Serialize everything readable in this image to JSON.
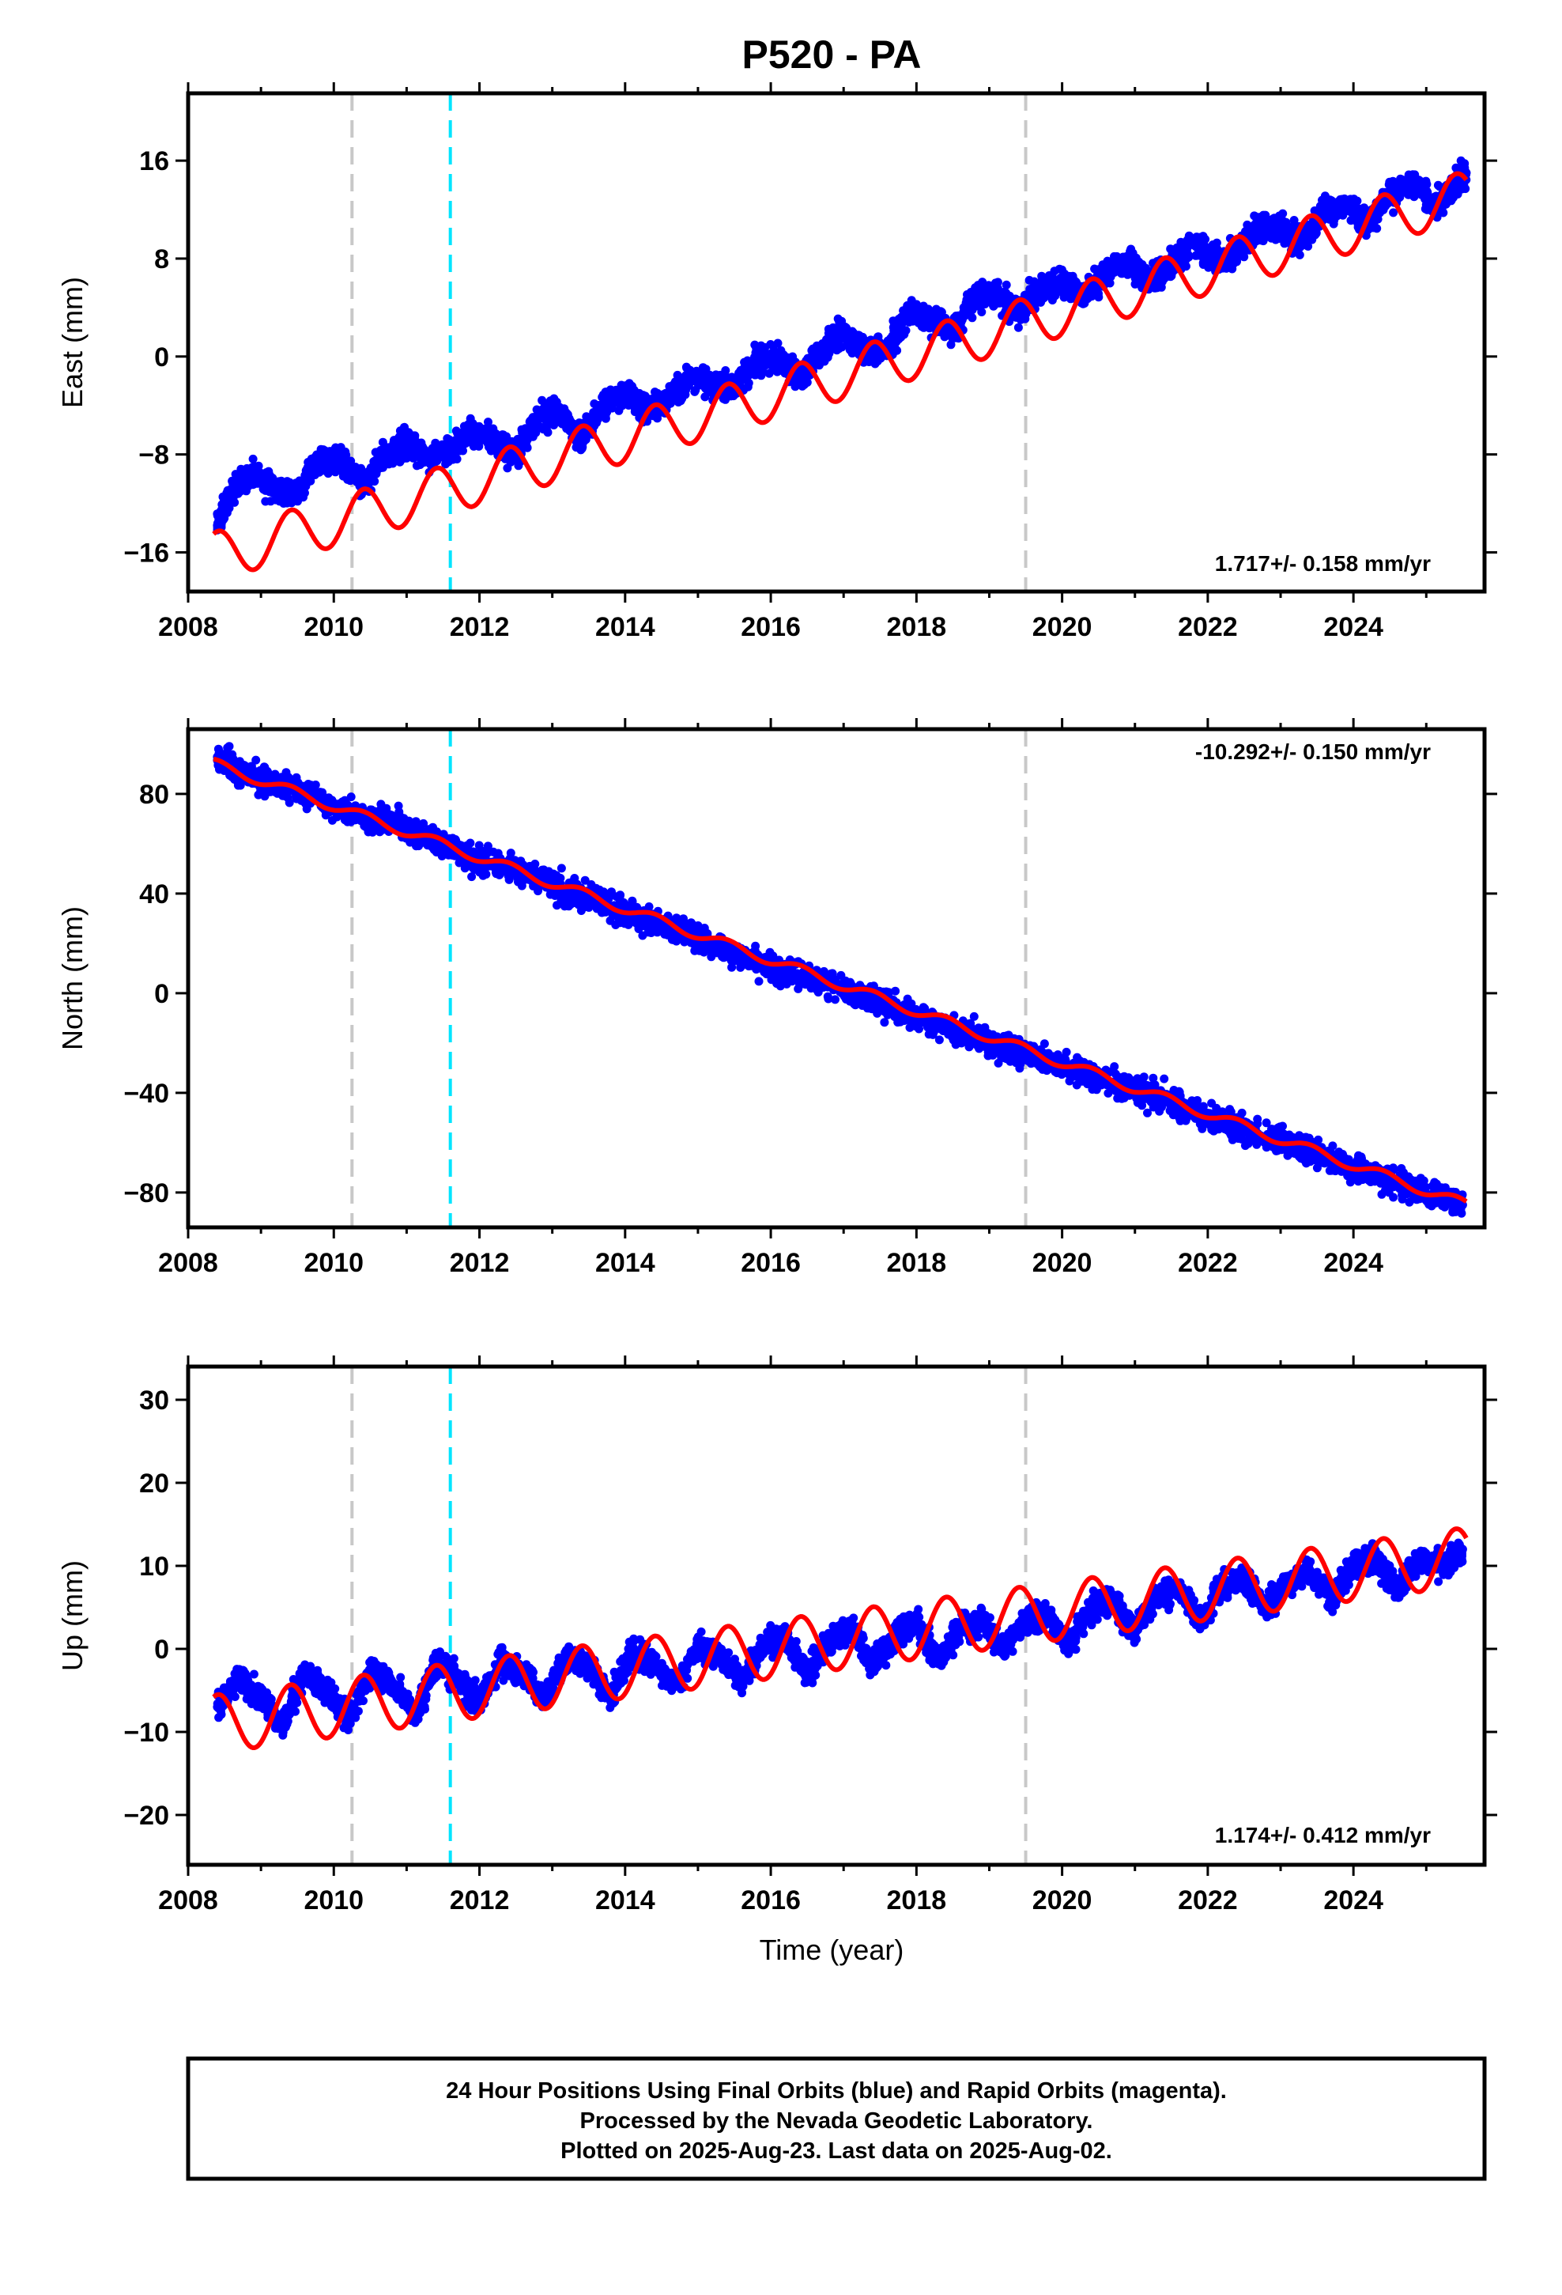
{
  "title": "P520 - PA",
  "xlabel": "Time (year)",
  "x_ticks": [
    2008,
    2010,
    2012,
    2014,
    2016,
    2018,
    2020,
    2022,
    2024
  ],
  "xlim": [
    2008.0,
    2025.8
  ],
  "event_lines": [
    {
      "x": 2010.25,
      "color": "#c8c8c8",
      "style": "dashed"
    },
    {
      "x": 2011.6,
      "color": "#00e5ff",
      "style": "dashed"
    },
    {
      "x": 2019.5,
      "color": "#c8c8c8",
      "style": "dashed"
    }
  ],
  "colors": {
    "points": "#0000ff",
    "fit": "#ff0000",
    "frame": "#000000"
  },
  "chart_data": [
    {
      "type": "scatter",
      "panel": "east",
      "ylabel": "East (mm)",
      "rate_label": "1.717+/- 0.158 mm/yr",
      "ylim": [
        -19.2,
        21.5
      ],
      "y_ticks": [
        -16,
        -8,
        0,
        8,
        16
      ],
      "fit": {
        "x_start": 2008.35,
        "y_start": -14.5,
        "slope": 1.717,
        "amplitude": 2.0
      },
      "series": [
        {
          "x": [
            2008.4,
            2008.6,
            2008.9,
            2009.2,
            2009.5,
            2009.8,
            2010.1,
            2010.4,
            2010.7,
            2011.0,
            2011.3,
            2011.6,
            2011.9,
            2012.2,
            2012.5,
            2012.8,
            2013.1,
            2013.4,
            2013.7,
            2014.0,
            2014.3,
            2014.6,
            2014.9,
            2015.2,
            2015.5,
            2015.8,
            2016.1,
            2016.4,
            2016.7,
            2017.0,
            2017.3,
            2017.6,
            2017.9,
            2018.2,
            2018.5,
            2018.8,
            2019.1,
            2019.4,
            2019.7,
            2020.0,
            2020.3,
            2020.6,
            2020.9,
            2021.2,
            2021.5,
            2021.8,
            2022.1,
            2022.4,
            2022.7,
            2023.0,
            2023.3,
            2023.6,
            2023.9,
            2024.2,
            2024.5,
            2024.8,
            2025.1,
            2025.4,
            2025.55
          ],
          "y": [
            -13.8,
            -11.0,
            -9.5,
            -10.8,
            -11.2,
            -8.5,
            -8.4,
            -10.5,
            -8.0,
            -7.1,
            -8.3,
            -7.5,
            -5.9,
            -6.8,
            -7.8,
            -5.0,
            -4.6,
            -6.7,
            -4.0,
            -3.0,
            -4.2,
            -3.4,
            -1.6,
            -2.2,
            -2.5,
            -0.3,
            -0.2,
            -1.6,
            0.6,
            2.1,
            0.4,
            0.6,
            3.6,
            3.1,
            2.0,
            5.1,
            5.0,
            3.5,
            5.6,
            6.1,
            5.0,
            6.9,
            7.9,
            6.3,
            7.5,
            9.4,
            7.8,
            8.5,
            10.7,
            10.2,
            9.5,
            12.0,
            12.3,
            11.0,
            13.3,
            14.2,
            12.5,
            14.0,
            15.0
          ]
        }
      ]
    },
    {
      "type": "scatter",
      "panel": "north",
      "ylabel": "North (mm)",
      "rate_label": "-10.292+/- 0.150 mm/yr",
      "ylim": [
        -94,
        106
      ],
      "y_ticks": [
        -80,
        -40,
        0,
        40,
        80
      ],
      "fit": {
        "x_start": 2008.35,
        "y_start": 94.0,
        "slope": -10.292,
        "amplitude": 2.0
      },
      "series": [
        {
          "x": [
            2008.4,
            2008.8,
            2009.2,
            2009.6,
            2010.0,
            2010.4,
            2010.8,
            2011.2,
            2011.6,
            2012.0,
            2012.4,
            2012.8,
            2013.2,
            2013.6,
            2014.0,
            2014.4,
            2014.8,
            2015.2,
            2015.6,
            2016.0,
            2016.4,
            2016.8,
            2017.2,
            2017.6,
            2018.0,
            2018.4,
            2018.8,
            2019.2,
            2019.6,
            2020.0,
            2020.4,
            2020.8,
            2021.2,
            2021.6,
            2022.0,
            2022.4,
            2022.8,
            2023.2,
            2023.6,
            2024.0,
            2024.4,
            2024.8,
            2025.2,
            2025.5
          ],
          "y": [
            93.5,
            88.0,
            84.0,
            80.5,
            75.0,
            71.0,
            69.5,
            63.5,
            59.0,
            53.0,
            50.0,
            46.5,
            40.0,
            38.5,
            32.0,
            28.0,
            25.5,
            19.0,
            15.0,
            11.5,
            7.0,
            3.5,
            -1.5,
            -4.0,
            -9.0,
            -13.5,
            -17.0,
            -22.0,
            -25.5,
            -29.0,
            -33.0,
            -37.0,
            -41.0,
            -44.5,
            -50.0,
            -54.0,
            -57.5,
            -61.5,
            -65.0,
            -70.0,
            -74.0,
            -78.0,
            -82.0,
            -85.0
          ]
        }
      ]
    },
    {
      "type": "scatter",
      "panel": "up",
      "ylabel": "Up (mm)",
      "rate_label": "1.174+/- 0.412 mm/yr",
      "ylim": [
        -26,
        34
      ],
      "y_ticks": [
        -20,
        -10,
        0,
        10,
        20,
        30
      ],
      "fit": {
        "x_start": 2008.35,
        "y_start": -5.8,
        "slope": 1.174,
        "amplitude": 3.5
      },
      "series": [
        {
          "x": [
            2008.4,
            2008.7,
            2009.0,
            2009.3,
            2009.6,
            2009.9,
            2010.2,
            2010.5,
            2010.8,
            2011.1,
            2011.4,
            2011.7,
            2012.0,
            2012.3,
            2012.6,
            2012.9,
            2013.2,
            2013.5,
            2013.8,
            2014.1,
            2014.4,
            2014.7,
            2015.0,
            2015.3,
            2015.6,
            2015.9,
            2016.2,
            2016.5,
            2016.8,
            2017.1,
            2017.4,
            2017.7,
            2018.0,
            2018.3,
            2018.6,
            2018.9,
            2019.2,
            2019.5,
            2019.8,
            2020.1,
            2020.4,
            2020.7,
            2021.0,
            2021.3,
            2021.6,
            2021.9,
            2022.2,
            2022.5,
            2022.8,
            2023.1,
            2023.4,
            2023.7,
            2024.0,
            2024.3,
            2024.6,
            2024.9,
            2025.2,
            2025.5
          ],
          "y": [
            -7.0,
            -3.5,
            -6.0,
            -9.0,
            -3.0,
            -5.0,
            -8.5,
            -2.5,
            -4.0,
            -8.0,
            -2.0,
            -3.5,
            -6.5,
            -1.5,
            -3.0,
            -6.0,
            -1.0,
            -2.0,
            -5.5,
            -0.5,
            -1.5,
            -4.5,
            0.0,
            -0.5,
            -4.0,
            0.5,
            1.5,
            -3.0,
            1.0,
            2.5,
            -2.0,
            1.5,
            3.0,
            -1.0,
            2.5,
            3.5,
            0.0,
            3.5,
            4.0,
            0.5,
            5.0,
            6.0,
            2.0,
            6.0,
            7.5,
            3.5,
            7.5,
            8.5,
            5.0,
            8.0,
            9.5,
            6.0,
            10.0,
            11.0,
            7.0,
            11.0,
            10.0,
            12.0
          ]
        }
      ]
    }
  ],
  "footer": {
    "line1": "24 Hour Positions Using Final Orbits (blue) and Rapid Orbits (magenta).",
    "line2": "Processed by the Nevada Geodetic Laboratory.",
    "line3": "Plotted on 2025-Aug-23. Last data on 2025-Aug-02."
  }
}
